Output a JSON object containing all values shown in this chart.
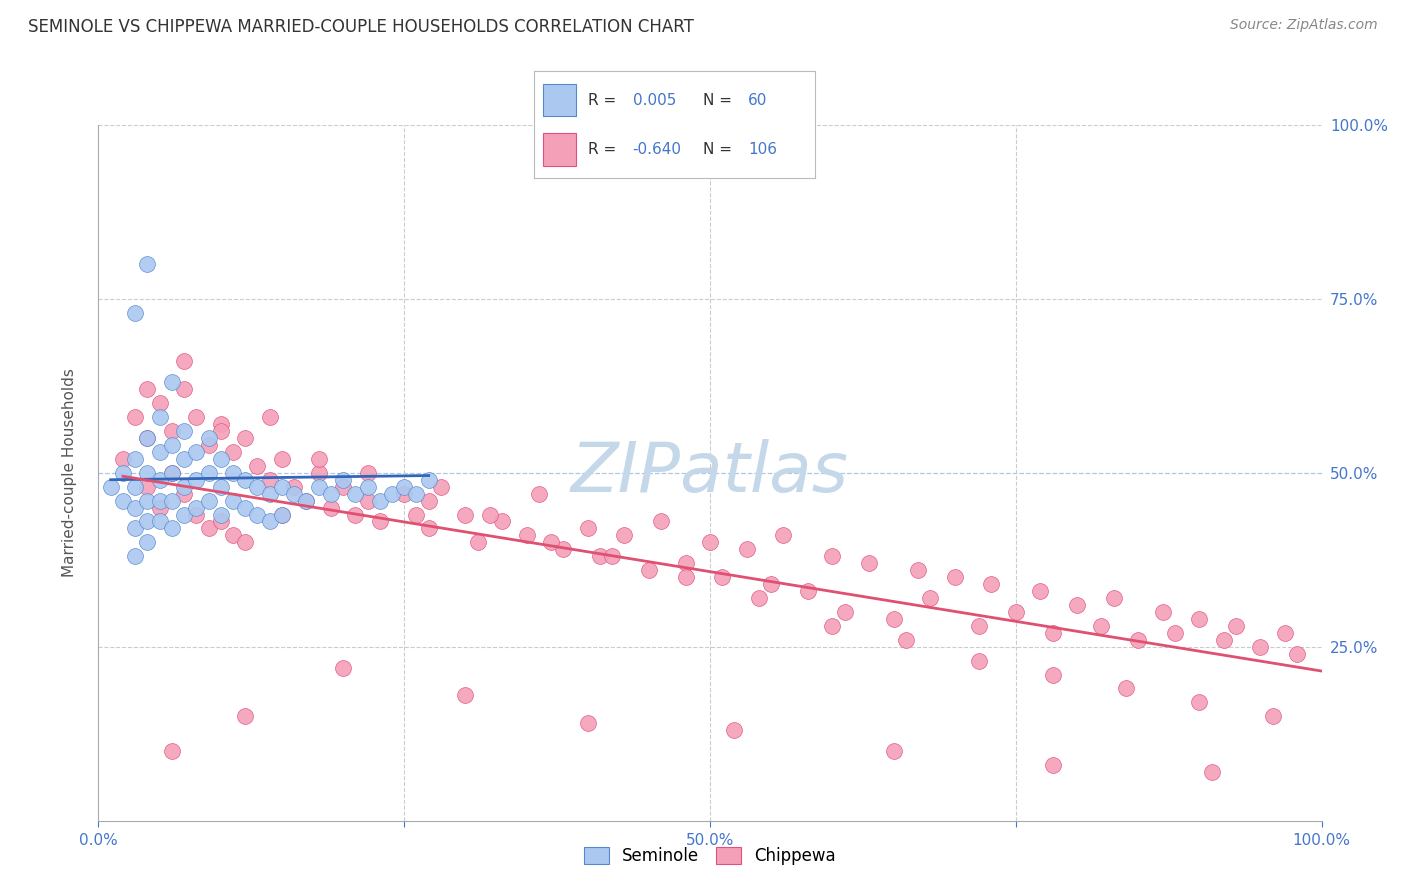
{
  "title": "SEMINOLE VS CHIPPEWA MARRIED-COUPLE HOUSEHOLDS CORRELATION CHART",
  "source": "Source: ZipAtlas.com",
  "ylabel": "Married-couple Households",
  "seminole_R": "0.005",
  "seminole_N": "60",
  "chippewa_R": "-0.640",
  "chippewa_N": "106",
  "seminole_color": "#aac8f0",
  "chippewa_color": "#f4a0b8",
  "seminole_edge_color": "#5588cc",
  "chippewa_edge_color": "#e05080",
  "seminole_line_color": "#3366bb",
  "chippewa_line_color": "#e05070",
  "watermark_color": "#c5d8ea",
  "background_color": "#ffffff",
  "grid_color": "#cccccc",
  "axis_label_color": "#4477cc",
  "title_color": "#333333",
  "source_color": "#888888",
  "xlim": [
    0.0,
    1.0
  ],
  "ylim": [
    0.0,
    1.0
  ],
  "seminole_x": [
    0.01,
    0.02,
    0.02,
    0.03,
    0.03,
    0.03,
    0.03,
    0.03,
    0.04,
    0.04,
    0.04,
    0.04,
    0.04,
    0.05,
    0.05,
    0.05,
    0.05,
    0.05,
    0.06,
    0.06,
    0.06,
    0.06,
    0.07,
    0.07,
    0.07,
    0.07,
    0.08,
    0.08,
    0.08,
    0.09,
    0.09,
    0.09,
    0.1,
    0.1,
    0.1,
    0.11,
    0.11,
    0.12,
    0.12,
    0.13,
    0.13,
    0.14,
    0.14,
    0.15,
    0.15,
    0.16,
    0.17,
    0.18,
    0.19,
    0.2,
    0.21,
    0.22,
    0.23,
    0.24,
    0.25,
    0.26,
    0.27,
    0.03,
    0.04,
    0.06
  ],
  "seminole_y": [
    0.48,
    0.5,
    0.46,
    0.52,
    0.48,
    0.45,
    0.42,
    0.38,
    0.55,
    0.5,
    0.46,
    0.43,
    0.4,
    0.58,
    0.53,
    0.49,
    0.46,
    0.43,
    0.54,
    0.5,
    0.46,
    0.42,
    0.56,
    0.52,
    0.48,
    0.44,
    0.53,
    0.49,
    0.45,
    0.55,
    0.5,
    0.46,
    0.52,
    0.48,
    0.44,
    0.5,
    0.46,
    0.49,
    0.45,
    0.48,
    0.44,
    0.47,
    0.43,
    0.48,
    0.44,
    0.47,
    0.46,
    0.48,
    0.47,
    0.49,
    0.47,
    0.48,
    0.46,
    0.47,
    0.48,
    0.47,
    0.49,
    0.73,
    0.8,
    0.63
  ],
  "seminole_line_x": [
    0.01,
    0.27
  ],
  "seminole_line_y": [
    0.49,
    0.496
  ],
  "chippewa_x": [
    0.02,
    0.03,
    0.04,
    0.04,
    0.05,
    0.05,
    0.06,
    0.06,
    0.07,
    0.07,
    0.08,
    0.08,
    0.09,
    0.09,
    0.1,
    0.1,
    0.11,
    0.11,
    0.12,
    0.12,
    0.13,
    0.14,
    0.15,
    0.15,
    0.16,
    0.17,
    0.18,
    0.19,
    0.2,
    0.21,
    0.22,
    0.23,
    0.25,
    0.26,
    0.27,
    0.28,
    0.3,
    0.31,
    0.33,
    0.35,
    0.36,
    0.38,
    0.4,
    0.41,
    0.43,
    0.45,
    0.46,
    0.48,
    0.5,
    0.51,
    0.53,
    0.55,
    0.56,
    0.58,
    0.6,
    0.61,
    0.63,
    0.65,
    0.67,
    0.68,
    0.7,
    0.72,
    0.73,
    0.75,
    0.77,
    0.78,
    0.8,
    0.82,
    0.83,
    0.85,
    0.87,
    0.88,
    0.9,
    0.92,
    0.93,
    0.95,
    0.97,
    0.98,
    0.04,
    0.07,
    0.1,
    0.14,
    0.18,
    0.22,
    0.27,
    0.32,
    0.37,
    0.42,
    0.48,
    0.54,
    0.6,
    0.66,
    0.72,
    0.78,
    0.84,
    0.9,
    0.96,
    0.06,
    0.12,
    0.2,
    0.3,
    0.4,
    0.52,
    0.65,
    0.78,
    0.91
  ],
  "chippewa_y": [
    0.52,
    0.58,
    0.55,
    0.48,
    0.6,
    0.45,
    0.56,
    0.5,
    0.62,
    0.47,
    0.58,
    0.44,
    0.54,
    0.42,
    0.57,
    0.43,
    0.53,
    0.41,
    0.55,
    0.4,
    0.51,
    0.49,
    0.52,
    0.44,
    0.48,
    0.46,
    0.5,
    0.45,
    0.48,
    0.44,
    0.46,
    0.43,
    0.47,
    0.44,
    0.42,
    0.48,
    0.44,
    0.4,
    0.43,
    0.41,
    0.47,
    0.39,
    0.42,
    0.38,
    0.41,
    0.36,
    0.43,
    0.37,
    0.4,
    0.35,
    0.39,
    0.34,
    0.41,
    0.33,
    0.38,
    0.3,
    0.37,
    0.29,
    0.36,
    0.32,
    0.35,
    0.28,
    0.34,
    0.3,
    0.33,
    0.27,
    0.31,
    0.28,
    0.32,
    0.26,
    0.3,
    0.27,
    0.29,
    0.26,
    0.28,
    0.25,
    0.27,
    0.24,
    0.62,
    0.66,
    0.56,
    0.58,
    0.52,
    0.5,
    0.46,
    0.44,
    0.4,
    0.38,
    0.35,
    0.32,
    0.28,
    0.26,
    0.23,
    0.21,
    0.19,
    0.17,
    0.15,
    0.1,
    0.15,
    0.22,
    0.18,
    0.14,
    0.13,
    0.1,
    0.08,
    0.07
  ],
  "chippewa_line_x": [
    0.02,
    1.0
  ],
  "chippewa_line_y": [
    0.495,
    0.215
  ]
}
